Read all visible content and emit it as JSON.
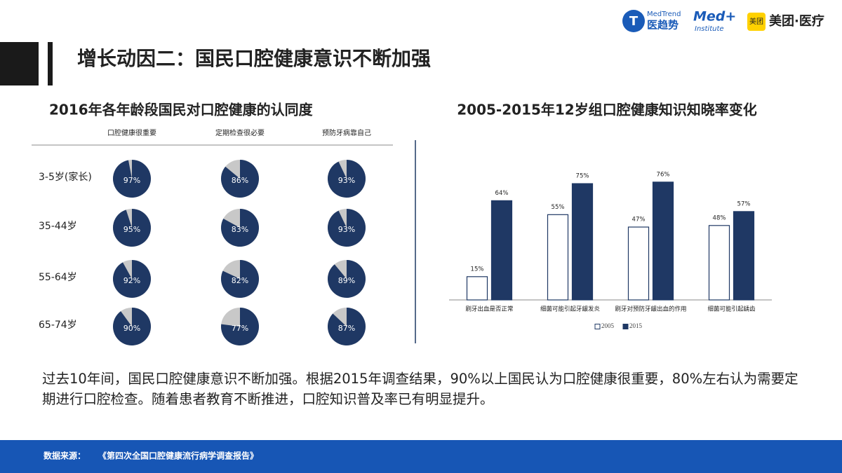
{
  "header": {
    "title": "增长动因二：国民口腔健康意识不断加强"
  },
  "logos": {
    "medtrend_en": "MedTrend",
    "medtrend_cn": "医趋势",
    "medplus": "Med+",
    "institute": "Institute",
    "meituan_badge": "美团",
    "meituan": "美团·医疗"
  },
  "chart_data": [
    {
      "type": "pie-grid",
      "title": "2016年各年龄段国民对口腔健康的认同度",
      "columns": [
        "口腔健康很重要",
        "定期检查很必要",
        "预防牙病靠自己"
      ],
      "rows": [
        {
          "name": "3-5岁(家长)",
          "values": [
            97,
            86,
            93
          ],
          "value_labels": [
            "97%",
            "86%",
            "93%"
          ]
        },
        {
          "name": "35-44岁",
          "values": [
            95,
            83,
            93
          ],
          "value_labels": [
            "95%",
            "83%",
            "93%"
          ]
        },
        {
          "name": "55-64岁",
          "values": [
            92,
            82,
            89
          ],
          "value_labels": [
            "92%",
            "82%",
            "89%"
          ]
        },
        {
          "name": "65-74岁",
          "values": [
            90,
            77,
            87
          ],
          "value_labels": [
            "90%",
            "77%",
            "87%"
          ]
        }
      ],
      "color": "#1f3864",
      "rest_color": "#c8c8c8"
    },
    {
      "type": "bar",
      "title": "2005-2015年12岁组口腔健康知识知晓率变化",
      "categories": [
        "刷牙出血是否正常",
        "细菌可能引起牙龈发炎",
        "刷牙对预防牙龈出血的作用",
        "细菌可能引起龋齿"
      ],
      "series": [
        {
          "name": "2005",
          "color": "#ffffff",
          "values": [
            15,
            55,
            47,
            48
          ],
          "value_labels": [
            "15%",
            "55%",
            "47%",
            "48%"
          ]
        },
        {
          "name": "2015",
          "color": "#1f3864",
          "values": [
            64,
            75,
            76,
            57
          ],
          "value_labels": [
            "64%",
            "75%",
            "76%",
            "57%"
          ]
        }
      ],
      "ylim": [
        0,
        80
      ],
      "legend": "bottom"
    }
  ],
  "body": {
    "text": "过去10年间，国民口腔健康意识不断加强。根据2015年调查结果，90%以上国民认为口腔健康很重要，80%左右认为需要定期进行口腔检查。随着患者教育不断推进，口腔知识普及率已有明显提升。"
  },
  "footer": {
    "label": "数据来源：",
    "source": "《第四次全国口腔健康流行病学调查报告》"
  }
}
